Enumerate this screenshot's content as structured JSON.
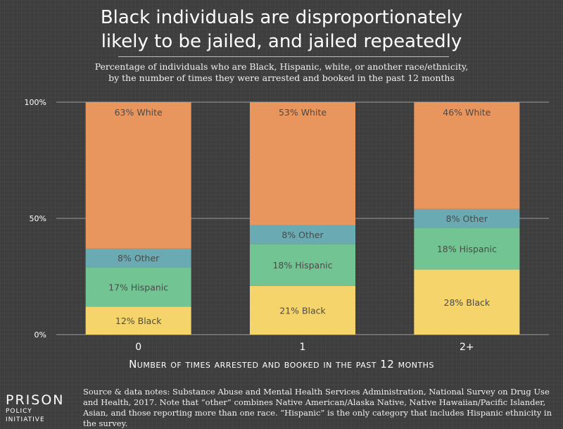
{
  "header": {
    "title_line1": "Black individuals are disproportionately",
    "title_line2": "likely to be jailed, and jailed repeatedly",
    "subtitle_line1": "Percentage of individuals who are Black, Hispanic, white, or another race/ethnicity,",
    "subtitle_line2": "by the number of times they were arrested and booked in the past 12 months"
  },
  "chart_data": {
    "type": "bar",
    "stacked": true,
    "categories": [
      "0",
      "1",
      "2+"
    ],
    "series": [
      {
        "name": "Black",
        "color": "#f5d56b",
        "values": [
          12,
          21,
          28
        ]
      },
      {
        "name": "Hispanic",
        "color": "#72c493",
        "values": [
          17,
          18,
          18
        ]
      },
      {
        "name": "Other",
        "color": "#6aabb3",
        "values": [
          8,
          8,
          8
        ]
      },
      {
        "name": "White",
        "color": "#e9955e",
        "values": [
          63,
          53,
          46
        ]
      }
    ],
    "labels": [
      [
        "12% Black",
        "17% Hispanic",
        "8% Other",
        "63% White"
      ],
      [
        "21% Black",
        "18% Hispanic",
        "8% Other",
        "53% White"
      ],
      [
        "28% Black",
        "18% Hispanic",
        "8% Other",
        "46% White"
      ]
    ],
    "y_ticks": [
      "0%",
      "50%",
      "100%"
    ],
    "y_tick_values": [
      0,
      50,
      100
    ],
    "ylim": [
      0,
      100
    ],
    "xlabel": "Number of times arrested and booked in the past 12 months",
    "ylabel": ""
  },
  "footer": {
    "logo_line1": "PRISON",
    "logo_line2": "POLICY INITIATIVE",
    "notes": "Source & data notes: Substance Abuse and Mental Health Services Administration, National Survey on Drug Use and Health, 2017. Note that “other” combines Native American/Alaska Native, Native Hawaiian/Pacific Islander, Asian, and those reporting more than one race. “Hispanic” is the only category that includes Hispanic ethnicity in the survey."
  }
}
